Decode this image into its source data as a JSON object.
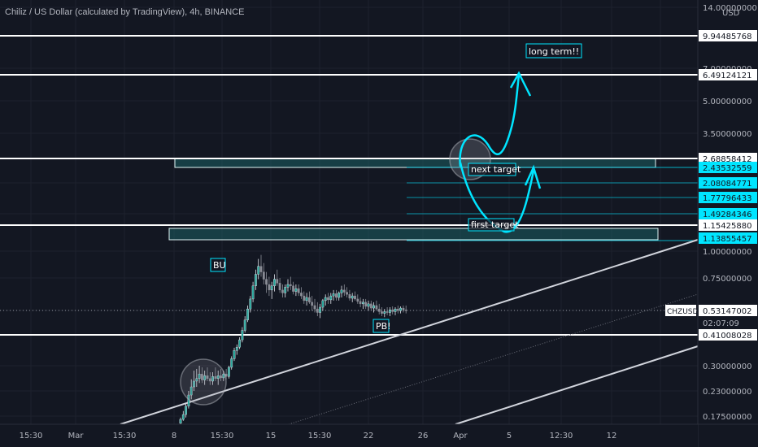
{
  "header": {
    "title": "Chiliz / US Dollar (calculated by TradingView), 4h, BINANCE"
  },
  "theme": {
    "background": "#131722",
    "grid": "#1e222d",
    "axis_text": "#b2b5be",
    "up_candle": "#26a69a",
    "down_candle": "#ef5350",
    "candle_neutral": "#d1d4dc",
    "cyan_annotation": "#00e5ff",
    "zone_fill": "#1c5e62",
    "white_line": "#ffffff"
  },
  "chart_data": {
    "type": "candlestick",
    "symbol": "CHZUSD",
    "title": "Chiliz / US Dollar (calculated by TradingView), 4h, BINANCE",
    "y_axis": {
      "scale": "log",
      "unit": "USD",
      "unit_label": "USD",
      "range": [
        0.16,
        15.5
      ],
      "tick_labels": [
        "14.00000000",
        "9.94485768",
        "7.00000000",
        "6.49124121",
        "5.00000000",
        "3.50000000",
        "2.68858412",
        "2.43532559",
        "2.08084771",
        "1.77796433",
        "1.49284346",
        "1.15425880",
        "1.13855457",
        "1.00000000",
        "0.75000000",
        "0.53147002",
        "0.41008028",
        "0.30000000",
        "0.23000000",
        "0.17500000"
      ]
    },
    "x_axis": {
      "tick_labels": [
        "15:30",
        "Mar",
        "15:30",
        "8",
        "15:30",
        "15",
        "15:30",
        "22",
        "26",
        "Apr",
        "5",
        "12:30",
        "12"
      ]
    },
    "price_labels": [
      {
        "value": 9.94485768,
        "text": "9.94485768",
        "style": "white"
      },
      {
        "value": 6.49124121,
        "text": "6.49124121",
        "style": "white"
      },
      {
        "value": 2.68858412,
        "text": "2.68858412",
        "style": "white"
      },
      {
        "value": 2.43532559,
        "text": "2.43532559",
        "style": "cyan"
      },
      {
        "value": 2.08084771,
        "text": "2.08084771",
        "style": "cyan"
      },
      {
        "value": 1.77796433,
        "text": "1.77796433",
        "style": "cyan"
      },
      {
        "value": 1.49284346,
        "text": "1.49284346",
        "style": "cyan"
      },
      {
        "value": 1.1542588,
        "text": "1.15425880",
        "style": "white"
      },
      {
        "value": 1.13855457,
        "text": "1.13855457",
        "style": "cyan"
      },
      {
        "value": 0.53147002,
        "text": "0.53147002",
        "style": "white",
        "symbol_tag": "CHZUSD",
        "countdown": "02:07:09"
      },
      {
        "value": 0.41008028,
        "text": "0.41008028",
        "style": "white"
      }
    ],
    "horizontal_lines": [
      9.94485768,
      6.49124121,
      2.68858412,
      1.1542588,
      0.41008028
    ],
    "zones": [
      {
        "label": "resistance-zone-upper",
        "low": 2.43532559,
        "high": 2.68858412
      },
      {
        "label": "resistance-zone-lower",
        "low": 1.13855457,
        "high": 1.1542588
      }
    ],
    "target_levels": [
      2.43532559,
      2.08084771,
      1.77796433,
      1.49284346,
      1.13855457
    ],
    "current_price": 0.53147002,
    "candles": [
      [
        0.16,
        0.172,
        0.155,
        0.168
      ],
      [
        0.168,
        0.185,
        0.165,
        0.178
      ],
      [
        0.178,
        0.2,
        0.172,
        0.195
      ],
      [
        0.195,
        0.23,
        0.19,
        0.22
      ],
      [
        0.22,
        0.26,
        0.21,
        0.24
      ],
      [
        0.24,
        0.285,
        0.23,
        0.255
      ],
      [
        0.255,
        0.29,
        0.24,
        0.262
      ],
      [
        0.262,
        0.3,
        0.25,
        0.275
      ],
      [
        0.275,
        0.295,
        0.25,
        0.258
      ],
      [
        0.258,
        0.285,
        0.245,
        0.27
      ],
      [
        0.27,
        0.295,
        0.255,
        0.262
      ],
      [
        0.262,
        0.28,
        0.245,
        0.255
      ],
      [
        0.255,
        0.28,
        0.245,
        0.268
      ],
      [
        0.268,
        0.295,
        0.255,
        0.262
      ],
      [
        0.262,
        0.285,
        0.245,
        0.27
      ],
      [
        0.27,
        0.29,
        0.255,
        0.264
      ],
      [
        0.264,
        0.285,
        0.255,
        0.275
      ],
      [
        0.275,
        0.29,
        0.26,
        0.268
      ],
      [
        0.268,
        0.3,
        0.262,
        0.295
      ],
      [
        0.295,
        0.33,
        0.288,
        0.322
      ],
      [
        0.322,
        0.36,
        0.315,
        0.35
      ],
      [
        0.35,
        0.372,
        0.335,
        0.362
      ],
      [
        0.362,
        0.4,
        0.355,
        0.39
      ],
      [
        0.39,
        0.445,
        0.38,
        0.43
      ],
      [
        0.43,
        0.5,
        0.42,
        0.48
      ],
      [
        0.48,
        0.56,
        0.47,
        0.54
      ],
      [
        0.54,
        0.62,
        0.52,
        0.6
      ],
      [
        0.6,
        0.72,
        0.58,
        0.69
      ],
      [
        0.69,
        0.82,
        0.66,
        0.78
      ],
      [
        0.78,
        0.92,
        0.74,
        0.85
      ],
      [
        0.85,
        0.96,
        0.76,
        0.8
      ],
      [
        0.8,
        0.88,
        0.7,
        0.74
      ],
      [
        0.74,
        0.8,
        0.64,
        0.7
      ],
      [
        0.7,
        0.76,
        0.62,
        0.66
      ],
      [
        0.66,
        0.72,
        0.6,
        0.69
      ],
      [
        0.69,
        0.78,
        0.65,
        0.74
      ],
      [
        0.74,
        0.82,
        0.69,
        0.71
      ],
      [
        0.71,
        0.75,
        0.64,
        0.66
      ],
      [
        0.66,
        0.7,
        0.61,
        0.64
      ],
      [
        0.64,
        0.7,
        0.61,
        0.68
      ],
      [
        0.68,
        0.74,
        0.65,
        0.7
      ],
      [
        0.7,
        0.76,
        0.66,
        0.69
      ],
      [
        0.69,
        0.72,
        0.63,
        0.65
      ],
      [
        0.65,
        0.7,
        0.62,
        0.67
      ],
      [
        0.67,
        0.7,
        0.62,
        0.64
      ],
      [
        0.64,
        0.68,
        0.6,
        0.62
      ],
      [
        0.62,
        0.65,
        0.57,
        0.59
      ],
      [
        0.59,
        0.64,
        0.56,
        0.61
      ],
      [
        0.61,
        0.65,
        0.57,
        0.58
      ],
      [
        0.58,
        0.62,
        0.53,
        0.56
      ],
      [
        0.56,
        0.6,
        0.52,
        0.54
      ],
      [
        0.54,
        0.58,
        0.5,
        0.52
      ],
      [
        0.52,
        0.57,
        0.49,
        0.55
      ],
      [
        0.55,
        0.6,
        0.53,
        0.59
      ],
      [
        0.59,
        0.63,
        0.56,
        0.61
      ],
      [
        0.61,
        0.64,
        0.57,
        0.595
      ],
      [
        0.595,
        0.64,
        0.57,
        0.62
      ],
      [
        0.62,
        0.66,
        0.59,
        0.635
      ],
      [
        0.635,
        0.66,
        0.59,
        0.61
      ],
      [
        0.61,
        0.65,
        0.59,
        0.64
      ],
      [
        0.64,
        0.69,
        0.61,
        0.66
      ],
      [
        0.66,
        0.7,
        0.62,
        0.645
      ],
      [
        0.645,
        0.68,
        0.61,
        0.63
      ],
      [
        0.63,
        0.66,
        0.59,
        0.605
      ],
      [
        0.605,
        0.64,
        0.58,
        0.62
      ],
      [
        0.62,
        0.65,
        0.59,
        0.6
      ],
      [
        0.6,
        0.63,
        0.57,
        0.585
      ],
      [
        0.585,
        0.61,
        0.55,
        0.57
      ],
      [
        0.57,
        0.6,
        0.54,
        0.58
      ],
      [
        0.58,
        0.6,
        0.54,
        0.555
      ],
      [
        0.555,
        0.59,
        0.53,
        0.57
      ],
      [
        0.57,
        0.59,
        0.53,
        0.545
      ],
      [
        0.545,
        0.58,
        0.52,
        0.56
      ],
      [
        0.56,
        0.59,
        0.53,
        0.54
      ],
      [
        0.54,
        0.57,
        0.51,
        0.525
      ],
      [
        0.525,
        0.55,
        0.5,
        0.515
      ],
      [
        0.515,
        0.54,
        0.495,
        0.525
      ],
      [
        0.525,
        0.55,
        0.505,
        0.52
      ],
      [
        0.52,
        0.55,
        0.5,
        0.535
      ],
      [
        0.535,
        0.555,
        0.51,
        0.525
      ],
      [
        0.525,
        0.55,
        0.505,
        0.54
      ],
      [
        0.54,
        0.56,
        0.515,
        0.53
      ],
      [
        0.53,
        0.555,
        0.515,
        0.545
      ],
      [
        0.545,
        0.56,
        0.52,
        0.535
      ],
      [
        0.535,
        0.56,
        0.515,
        0.531
      ]
    ],
    "annotations": [
      {
        "text": "long term!!",
        "anchor_value": 8.0
      },
      {
        "text": "next target",
        "anchor_value": 2.33
      },
      {
        "text": "first target",
        "anchor_value": 1.19
      },
      {
        "text": "BU",
        "anchor_value": 0.88
      },
      {
        "text": "PB!",
        "anchor_value": 0.455
      }
    ],
    "drawings": [
      "ascending trendline",
      "parallel channel dotted line",
      "parallel channel lower line",
      "cyan projection arrows",
      "circle highlights"
    ]
  }
}
